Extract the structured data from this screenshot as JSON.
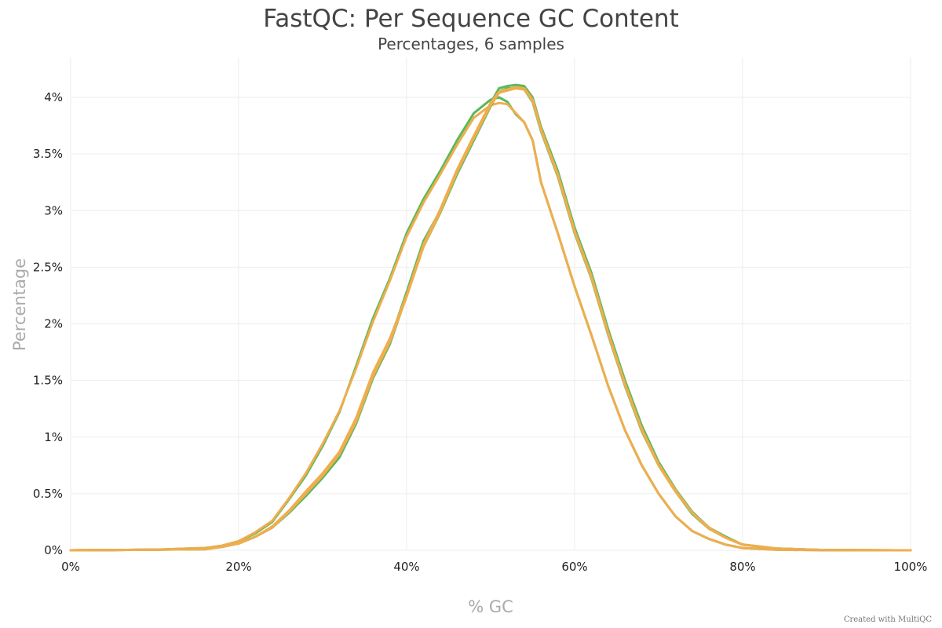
{
  "chart_data": {
    "type": "line",
    "title": "FastQC: Per Sequence GC Content",
    "subtitle": "Percentages, 6 samples",
    "xlabel": "% GC",
    "ylabel": "Percentage",
    "xlim": [
      0,
      100
    ],
    "ylim": [
      0,
      4.3
    ],
    "x_ticks": [
      "0%",
      "20%",
      "40%",
      "60%",
      "80%",
      "100%"
    ],
    "y_ticks": [
      "0%",
      "0.5%",
      "1%",
      "1.5%",
      "2%",
      "2.5%",
      "3%",
      "3.5%",
      "4%"
    ],
    "grid": true,
    "legend": "none",
    "colors": {
      "pass": "#5cb85c",
      "warn": "#f0ad4e",
      "grid": "#eeeeee"
    },
    "series": [
      {
        "color": "#5cb85c",
        "x": [
          0,
          10,
          16,
          18,
          20,
          22,
          24,
          26,
          28,
          30,
          32,
          34,
          36,
          38,
          40,
          42,
          44,
          46,
          48,
          50,
          51,
          52,
          53,
          54,
          55,
          56,
          58,
          60,
          62,
          64,
          66,
          68,
          70,
          72,
          74,
          76,
          78,
          80,
          84,
          90,
          100
        ],
        "y": [
          0,
          0.005,
          0.02,
          0.04,
          0.08,
          0.15,
          0.25,
          0.45,
          0.66,
          0.92,
          1.22,
          1.63,
          2.05,
          2.4,
          2.8,
          3.1,
          3.35,
          3.62,
          3.86,
          3.98,
          4.0,
          3.96,
          3.85,
          3.78,
          3.62,
          3.25,
          2.8,
          2.33,
          1.9,
          1.45,
          1.06,
          0.75,
          0.5,
          0.3,
          0.17,
          0.1,
          0.05,
          0.02,
          0.005,
          0.001,
          0
        ]
      },
      {
        "color": "#f0ad4e",
        "x": [
          0,
          10,
          16,
          18,
          20,
          22,
          24,
          26,
          28,
          30,
          32,
          34,
          36,
          38,
          40,
          42,
          44,
          46,
          48,
          50,
          51,
          52,
          53,
          54,
          55,
          56,
          58,
          60,
          62,
          64,
          66,
          68,
          70,
          72,
          74,
          76,
          78,
          80,
          84,
          90,
          100
        ],
        "y": [
          0,
          0.005,
          0.02,
          0.04,
          0.08,
          0.16,
          0.26,
          0.46,
          0.68,
          0.94,
          1.23,
          1.61,
          2.02,
          2.38,
          2.77,
          3.07,
          3.32,
          3.58,
          3.82,
          3.93,
          3.95,
          3.94,
          3.86,
          3.78,
          3.62,
          3.25,
          2.8,
          2.33,
          1.9,
          1.45,
          1.06,
          0.75,
          0.5,
          0.3,
          0.17,
          0.1,
          0.05,
          0.02,
          0.005,
          0.001,
          0
        ]
      },
      {
        "color": "#5cb85c",
        "x": [
          0,
          10,
          16,
          18,
          20,
          22,
          24,
          26,
          28,
          30,
          32,
          34,
          36,
          38,
          40,
          42,
          44,
          46,
          48,
          50,
          51,
          52,
          53,
          54,
          55,
          56,
          58,
          60,
          62,
          64,
          66,
          68,
          70,
          72,
          74,
          76,
          78,
          80,
          84,
          90,
          100
        ],
        "y": [
          0,
          0.005,
          0.01,
          0.03,
          0.06,
          0.12,
          0.2,
          0.34,
          0.5,
          0.66,
          0.85,
          1.15,
          1.55,
          1.85,
          2.28,
          2.73,
          3.0,
          3.35,
          3.65,
          3.95,
          4.08,
          4.1,
          4.11,
          4.1,
          4.0,
          3.74,
          3.35,
          2.85,
          2.45,
          1.95,
          1.5,
          1.1,
          0.78,
          0.54,
          0.34,
          0.2,
          0.12,
          0.05,
          0.015,
          0.002,
          0
        ]
      },
      {
        "color": "#5cb85c",
        "x": [
          0,
          10,
          16,
          18,
          20,
          22,
          24,
          26,
          28,
          30,
          32,
          34,
          36,
          38,
          40,
          42,
          44,
          46,
          48,
          50,
          51,
          52,
          53,
          54,
          55,
          56,
          58,
          60,
          62,
          64,
          66,
          68,
          70,
          72,
          74,
          76,
          78,
          80,
          84,
          90,
          100
        ],
        "y": [
          0,
          0.005,
          0.01,
          0.03,
          0.06,
          0.12,
          0.2,
          0.33,
          0.48,
          0.64,
          0.82,
          1.12,
          1.52,
          1.82,
          2.25,
          2.68,
          2.98,
          3.32,
          3.62,
          3.92,
          4.05,
          4.08,
          4.08,
          4.07,
          3.96,
          3.7,
          3.3,
          2.8,
          2.4,
          1.9,
          1.45,
          1.05,
          0.75,
          0.52,
          0.32,
          0.19,
          0.11,
          0.05,
          0.015,
          0.002,
          0
        ]
      },
      {
        "color": "#f0ad4e",
        "x": [
          0,
          10,
          16,
          18,
          20,
          22,
          24,
          26,
          28,
          30,
          32,
          34,
          36,
          38,
          40,
          42,
          44,
          46,
          48,
          50,
          51,
          52,
          53,
          54,
          55,
          56,
          58,
          60,
          62,
          64,
          66,
          68,
          70,
          72,
          74,
          76,
          78,
          80,
          84,
          90,
          100
        ],
        "y": [
          0,
          0.005,
          0.01,
          0.03,
          0.06,
          0.12,
          0.21,
          0.35,
          0.52,
          0.68,
          0.87,
          1.17,
          1.57,
          1.87,
          2.25,
          2.7,
          3.01,
          3.36,
          3.66,
          3.95,
          4.05,
          4.07,
          4.09,
          4.08,
          3.98,
          3.72,
          3.32,
          2.82,
          2.42,
          1.92,
          1.47,
          1.07,
          0.76,
          0.53,
          0.33,
          0.2,
          0.11,
          0.05,
          0.015,
          0.002,
          0
        ]
      },
      {
        "color": "#f0ad4e",
        "x": [
          0,
          10,
          16,
          18,
          20,
          22,
          24,
          26,
          28,
          30,
          32,
          34,
          36,
          38,
          40,
          42,
          44,
          46,
          48,
          50,
          51,
          52,
          53,
          54,
          55,
          56,
          58,
          60,
          62,
          64,
          66,
          68,
          70,
          72,
          74,
          76,
          78,
          80,
          84,
          90,
          100
        ],
        "y": [
          0,
          0.005,
          0.01,
          0.03,
          0.06,
          0.12,
          0.2,
          0.34,
          0.5,
          0.66,
          0.85,
          1.14,
          1.54,
          1.84,
          2.24,
          2.68,
          2.99,
          3.34,
          3.64,
          3.93,
          4.04,
          4.06,
          4.08,
          4.07,
          3.97,
          3.71,
          3.31,
          2.81,
          2.41,
          1.91,
          1.46,
          1.06,
          0.75,
          0.52,
          0.33,
          0.19,
          0.11,
          0.05,
          0.015,
          0.002,
          0
        ]
      }
    ]
  },
  "credit": "Created with MultiQC"
}
